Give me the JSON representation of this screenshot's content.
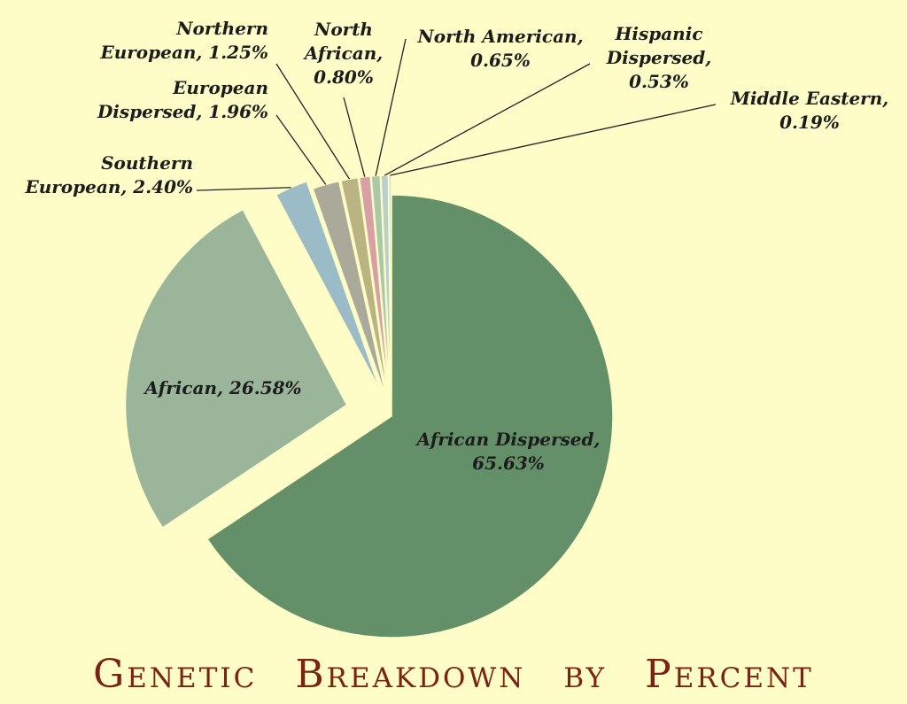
{
  "chart_data": {
    "type": "pie",
    "title": "Genetic Breakdown by Percent",
    "slices": [
      {
        "name": "African Dispersed",
        "value": 65.63,
        "label": [
          "African Dispersed,",
          "65.63%"
        ],
        "color": "#649069"
      },
      {
        "name": "African",
        "value": 26.58,
        "label": [
          "African, 26.58%"
        ],
        "color": "#9ab59a"
      },
      {
        "name": "Southern European",
        "value": 2.4,
        "label": [
          "Southern",
          "European, 2.40%"
        ],
        "color": "#9bbcc6"
      },
      {
        "name": "European Dispersed",
        "value": 1.96,
        "label": [
          "European",
          "Dispersed, 1.96%"
        ],
        "color": "#aaa99a"
      },
      {
        "name": "Northern European",
        "value": 1.25,
        "label": [
          "Northern",
          "European, 1.25%"
        ],
        "color": "#b9b482"
      },
      {
        "name": "North African",
        "value": 0.8,
        "label": [
          "North",
          "African,",
          "0.80%"
        ],
        "color": "#d7a0a5"
      },
      {
        "name": "North American",
        "value": 0.65,
        "label": [
          "North American,",
          "0.65%"
        ],
        "color": "#a9c9a9"
      },
      {
        "name": "Hispanic Dispersed",
        "value": 0.53,
        "label": [
          "Hispanic",
          "Dispersed,",
          "0.53%"
        ],
        "color": "#b8d0cd"
      },
      {
        "name": "Middle Eastern",
        "value": 0.19,
        "label": [
          "Middle Eastern,",
          "0.19%"
        ],
        "color": "#d0dccb"
      }
    ]
  }
}
